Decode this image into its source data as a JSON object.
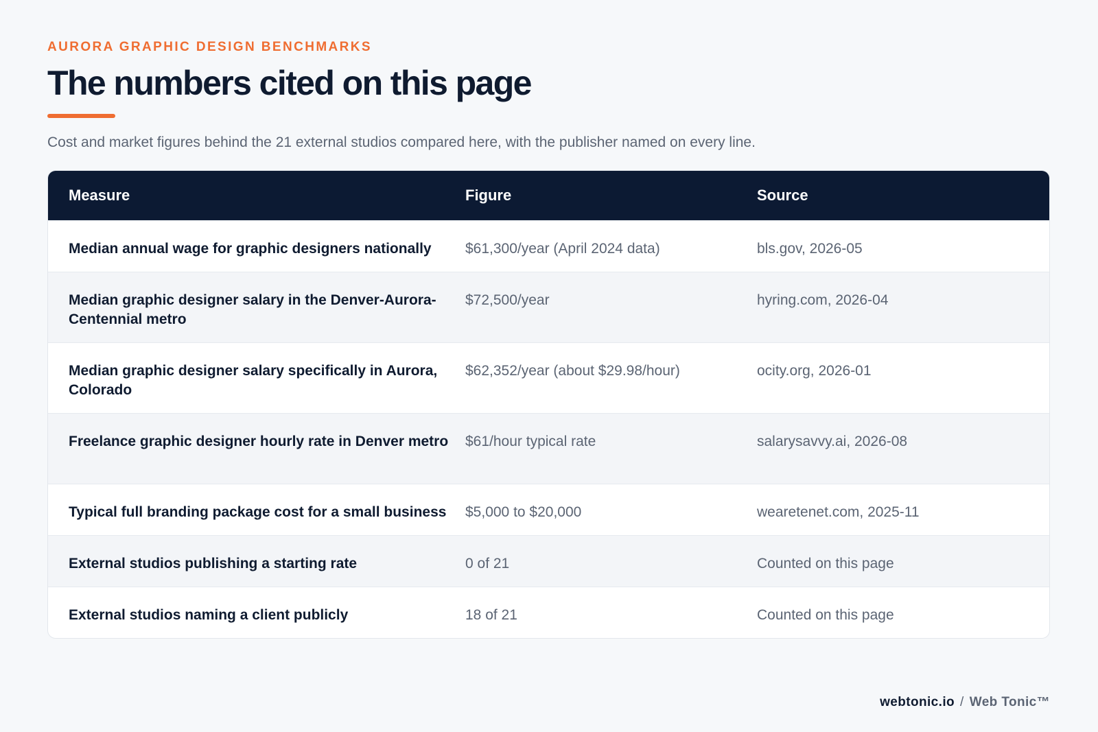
{
  "eyebrow": "AURORA GRAPHIC DESIGN BENCHMARKS",
  "title": "The numbers cited on this page",
  "subtitle": "Cost and market figures behind the 21 external studios compared here, with the publisher named on every line.",
  "table": {
    "headers": {
      "measure": "Measure",
      "figure": "Figure",
      "source": "Source"
    },
    "rows": [
      {
        "measure": "Median annual wage for graphic designers nationally",
        "figure": "$61,300/year (April 2024 data)",
        "source": "bls.gov, 2026-05"
      },
      {
        "measure": "Median graphic designer salary in the Denver-Aurora-Centennial metro",
        "figure": "$72,500/year",
        "source": "hyring.com, 2026-04"
      },
      {
        "measure": "Median graphic designer salary specifically in Aurora, Colorado",
        "figure": "$62,352/year (about $29.98/hour)",
        "source": "ocity.org, 2026-01"
      },
      {
        "measure": "Freelance graphic designer hourly rate in Denver metro",
        "figure": "$61/hour typical rate",
        "source": "salarysavvy.ai, 2026-08"
      },
      {
        "measure": "Typical full branding package cost for a small business",
        "figure": "$5,000 to $20,000",
        "source": "wearetenet.com, 2025-11"
      },
      {
        "measure": "External studios publishing a starting rate",
        "figure": "0 of 21",
        "source": "Counted on this page"
      },
      {
        "measure": "External studios naming a client publicly",
        "figure": "18 of 21",
        "source": "Counted on this page"
      }
    ]
  },
  "footer": {
    "domain": "webtonic.io",
    "separator": "/",
    "brand": "Web Tonic™"
  },
  "colors": {
    "accent": "#ef6d31",
    "header_bg": "#0c1a33",
    "text_dark": "#0f1b30",
    "text_muted": "#5b6473",
    "page_bg": "#f6f8fa"
  }
}
